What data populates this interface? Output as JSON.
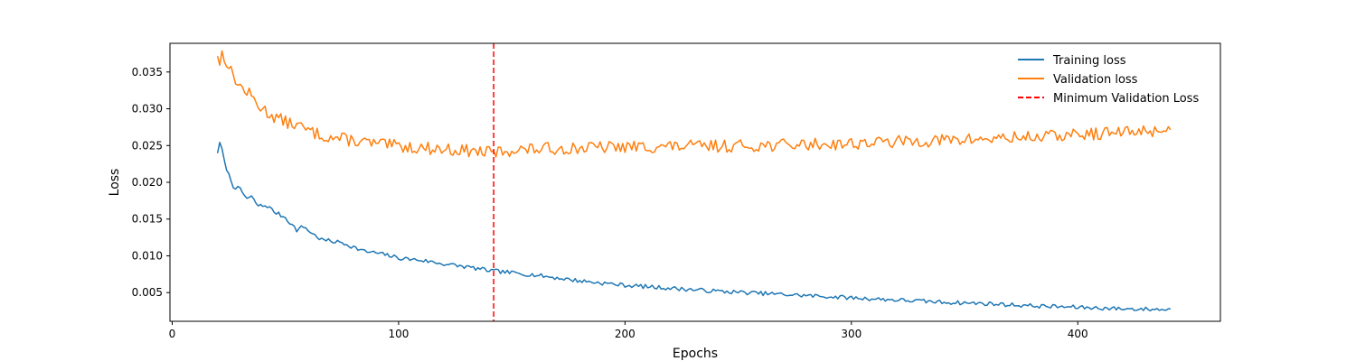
{
  "chart_data": {
    "type": "line",
    "title": "",
    "xlabel": "Epochs",
    "ylabel": "Loss",
    "xlim": [
      -1,
      463
    ],
    "ylim": [
      0.0011,
      0.0389
    ],
    "x_ticks": [
      0,
      100,
      200,
      300,
      400
    ],
    "x_tick_labels": [
      "0",
      "100",
      "200",
      "300",
      "400"
    ],
    "y_ticks": [
      0.005,
      0.01,
      0.015,
      0.02,
      0.025,
      0.03,
      0.035
    ],
    "y_tick_labels": [
      "0.005",
      "0.010",
      "0.015",
      "0.020",
      "0.025",
      "0.030",
      "0.035"
    ],
    "grid": false,
    "legend_position": "top-right",
    "x_start": 20,
    "x_end": 441,
    "series": [
      {
        "name": "Training loss",
        "color": "#1f77b4",
        "dash": "solid",
        "anchors": [
          [
            20,
            0.0241
          ],
          [
            21,
            0.0252
          ],
          [
            22,
            0.0245
          ],
          [
            23,
            0.0228
          ],
          [
            25,
            0.021
          ],
          [
            27,
            0.0195
          ],
          [
            30,
            0.019
          ],
          [
            33,
            0.0178
          ],
          [
            35,
            0.018
          ],
          [
            38,
            0.0168
          ],
          [
            42,
            0.0168
          ],
          [
            45,
            0.016
          ],
          [
            50,
            0.0152
          ],
          [
            53,
            0.0142
          ],
          [
            55,
            0.0135
          ],
          [
            58,
            0.014
          ],
          [
            62,
            0.013
          ],
          [
            66,
            0.0122
          ],
          [
            70,
            0.012
          ],
          [
            75,
            0.0118
          ],
          [
            80,
            0.0112
          ],
          [
            85,
            0.0106
          ],
          [
            90,
            0.0104
          ],
          [
            95,
            0.0101
          ],
          [
            100,
            0.0097
          ],
          [
            110,
            0.0094
          ],
          [
            120,
            0.0089
          ],
          [
            130,
            0.0085
          ],
          [
            140,
            0.008
          ],
          [
            150,
            0.0077
          ],
          [
            160,
            0.0074
          ],
          [
            170,
            0.007
          ],
          [
            180,
            0.0066
          ],
          [
            190,
            0.0063
          ],
          [
            200,
            0.006
          ],
          [
            220,
            0.0056
          ],
          [
            240,
            0.0052
          ],
          [
            260,
            0.0049
          ],
          [
            280,
            0.0046
          ],
          [
            300,
            0.0043
          ],
          [
            320,
            0.004
          ],
          [
            340,
            0.0037
          ],
          [
            360,
            0.0035
          ],
          [
            380,
            0.0032
          ],
          [
            400,
            0.003
          ],
          [
            420,
            0.0028
          ],
          [
            441,
            0.0027
          ]
        ],
        "noise": 0.00028,
        "seed": 7
      },
      {
        "name": "Validation loss",
        "color": "#ff7f0e",
        "dash": "solid",
        "anchors": [
          [
            20,
            0.0376
          ],
          [
            21,
            0.036
          ],
          [
            22,
            0.0375
          ],
          [
            24,
            0.0365
          ],
          [
            26,
            0.035
          ],
          [
            30,
            0.033
          ],
          [
            34,
            0.032
          ],
          [
            38,
            0.0305
          ],
          [
            42,
            0.0295
          ],
          [
            46,
            0.0288
          ],
          [
            50,
            0.0282
          ],
          [
            55,
            0.0278
          ],
          [
            60,
            0.027
          ],
          [
            65,
            0.0265
          ],
          [
            70,
            0.0261
          ],
          [
            80,
            0.0257
          ],
          [
            90,
            0.0252
          ],
          [
            100,
            0.0249
          ],
          [
            110,
            0.0247
          ],
          [
            120,
            0.0245
          ],
          [
            130,
            0.0243
          ],
          [
            142,
            0.024
          ],
          [
            150,
            0.0244
          ],
          [
            170,
            0.0246
          ],
          [
            200,
            0.0248
          ],
          [
            230,
            0.0249
          ],
          [
            260,
            0.025
          ],
          [
            300,
            0.0253
          ],
          [
            330,
            0.0256
          ],
          [
            360,
            0.0259
          ],
          [
            390,
            0.0263
          ],
          [
            420,
            0.0268
          ],
          [
            441,
            0.0272
          ]
        ],
        "noise": 0.00085,
        "seed": 13
      }
    ],
    "vline": {
      "name": "Minimum Validation Loss",
      "x": 142,
      "color": "#ff0000",
      "dash": "dashed"
    }
  }
}
